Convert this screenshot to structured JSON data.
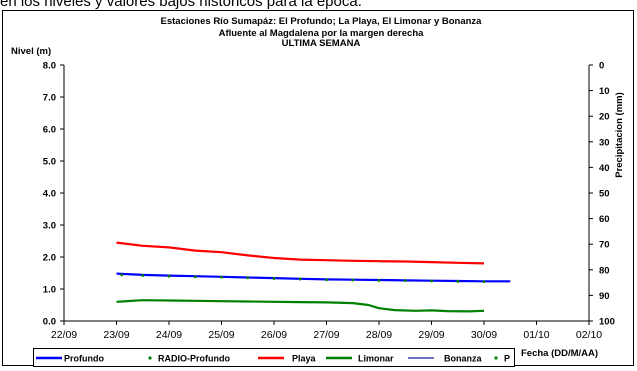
{
  "top_text": "en los niveles y valores bajos históricos para la época.",
  "chart_data": {
    "type": "line",
    "title_lines": [
      "Estaciones Río Sumapáz: El Profundo; La Playa, El Limonar y Bonanza",
      "Afluente al Magdalena por la margen derecha",
      "ULTIMA SEMANA"
    ],
    "ylabel": "Nivel (m)",
    "y2label": "Precipitacion (mm)",
    "xlabel": "Fecha (DD/M/AA)",
    "ylim": [
      0,
      8
    ],
    "y2lim": [
      0,
      100
    ],
    "y2_reversed": true,
    "yticks": [
      "0.0",
      "1.0",
      "2.0",
      "3.0",
      "4.0",
      "5.0",
      "6.0",
      "7.0",
      "8.0"
    ],
    "y2ticks": [
      "0",
      "10",
      "20",
      "30",
      "40",
      "50",
      "60",
      "70",
      "80",
      "90",
      "100"
    ],
    "xticks": [
      "22/09",
      "23/09",
      "24/09",
      "25/09",
      "26/09",
      "27/09",
      "28/09",
      "29/09",
      "30/09",
      "01/10",
      "02/10"
    ],
    "grid": false,
    "legend_position": "bottom",
    "series": [
      {
        "name": "Profundo",
        "style": "line",
        "color": "#0000ff",
        "x": [
          1.0,
          1.5,
          2.0,
          2.5,
          3.0,
          3.5,
          4.0,
          4.5,
          5.0,
          5.5,
          6.0,
          6.5,
          7.0,
          7.5,
          8.0,
          8.5
        ],
        "y": [
          1.48,
          1.44,
          1.42,
          1.4,
          1.38,
          1.36,
          1.34,
          1.32,
          1.3,
          1.29,
          1.28,
          1.27,
          1.26,
          1.25,
          1.24,
          1.24
        ]
      },
      {
        "name": "RADIO-Profundo",
        "style": "dots",
        "color": "#008000",
        "x": [
          1.1,
          1.5,
          2.0,
          2.5,
          3.0,
          3.5,
          4.0,
          4.5,
          5.0,
          5.5,
          6.0,
          6.5,
          7.0,
          7.5,
          8.0
        ],
        "y": [
          1.44,
          1.42,
          1.4,
          1.38,
          1.37,
          1.35,
          1.33,
          1.31,
          1.29,
          1.28,
          1.27,
          1.26,
          1.25,
          1.24,
          1.23
        ]
      },
      {
        "name": "Playa",
        "style": "line",
        "color": "#ff0000",
        "x": [
          1.0,
          1.5,
          2.0,
          2.5,
          3.0,
          3.5,
          4.0,
          4.5,
          5.0,
          5.5,
          6.0,
          6.5,
          7.0,
          7.5,
          8.0
        ],
        "y": [
          2.45,
          2.35,
          2.3,
          2.2,
          2.15,
          2.05,
          1.97,
          1.92,
          1.9,
          1.88,
          1.87,
          1.86,
          1.84,
          1.82,
          1.8
        ]
      },
      {
        "name": "Limonar",
        "style": "line",
        "color": "#008000",
        "x": [
          1.0,
          1.5,
          2.0,
          2.5,
          3.0,
          3.5,
          4.0,
          4.5,
          5.0,
          5.5,
          5.8,
          6.0,
          6.3,
          6.7,
          7.0,
          7.3,
          7.7,
          8.0
        ],
        "y": [
          0.6,
          0.65,
          0.64,
          0.63,
          0.62,
          0.61,
          0.6,
          0.59,
          0.58,
          0.56,
          0.5,
          0.4,
          0.34,
          0.32,
          0.33,
          0.31,
          0.3,
          0.32
        ]
      },
      {
        "name": "Bonanza",
        "style": "line",
        "color": "#1f1faa",
        "x": [],
        "y": []
      },
      {
        "name": "P",
        "style": "dots",
        "color": "#008000",
        "axis": "right",
        "x": [],
        "y": []
      }
    ]
  }
}
